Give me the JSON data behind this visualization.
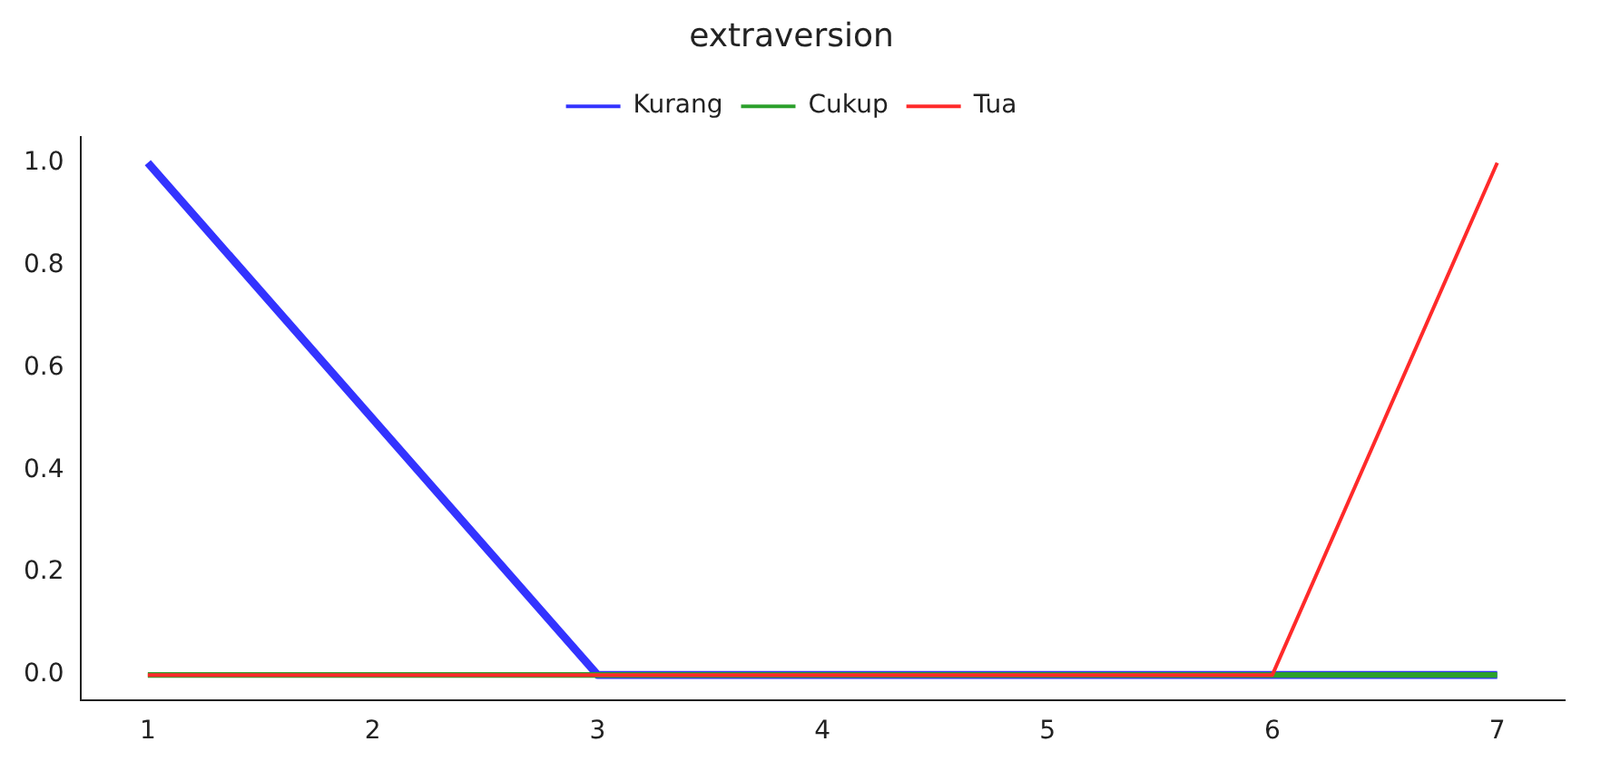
{
  "chart_data": {
    "type": "line",
    "title": "extraversion",
    "series": [
      {
        "name": "Kurang",
        "color": "#3333ff",
        "x": [
          1,
          3,
          7
        ],
        "values": [
          1,
          0,
          0
        ]
      },
      {
        "name": "Cukup",
        "color": "#2ca02c",
        "x": [
          1,
          7
        ],
        "values": [
          0,
          0
        ]
      },
      {
        "name": "Tua",
        "color": "#ff2a2a",
        "x": [
          1,
          6,
          7
        ],
        "values": [
          0,
          0,
          1
        ]
      }
    ],
    "xlim": [
      0.7,
      7.3
    ],
    "xticks": [
      1,
      2,
      3,
      4,
      5,
      6,
      7
    ],
    "ylim": [
      -0.05,
      1.05
    ],
    "yticks": [
      {
        "value": 0,
        "label": "0.0"
      },
      {
        "value": 0.2,
        "label": "0.2"
      },
      {
        "value": 0.4,
        "label": "0.4"
      },
      {
        "value": 0.6,
        "label": "0.6"
      },
      {
        "value": 0.8,
        "label": "0.8"
      },
      {
        "value": 1,
        "label": "1.0"
      }
    ],
    "grid": false,
    "legend": "top",
    "marker": "none",
    "line_style": "solid"
  }
}
